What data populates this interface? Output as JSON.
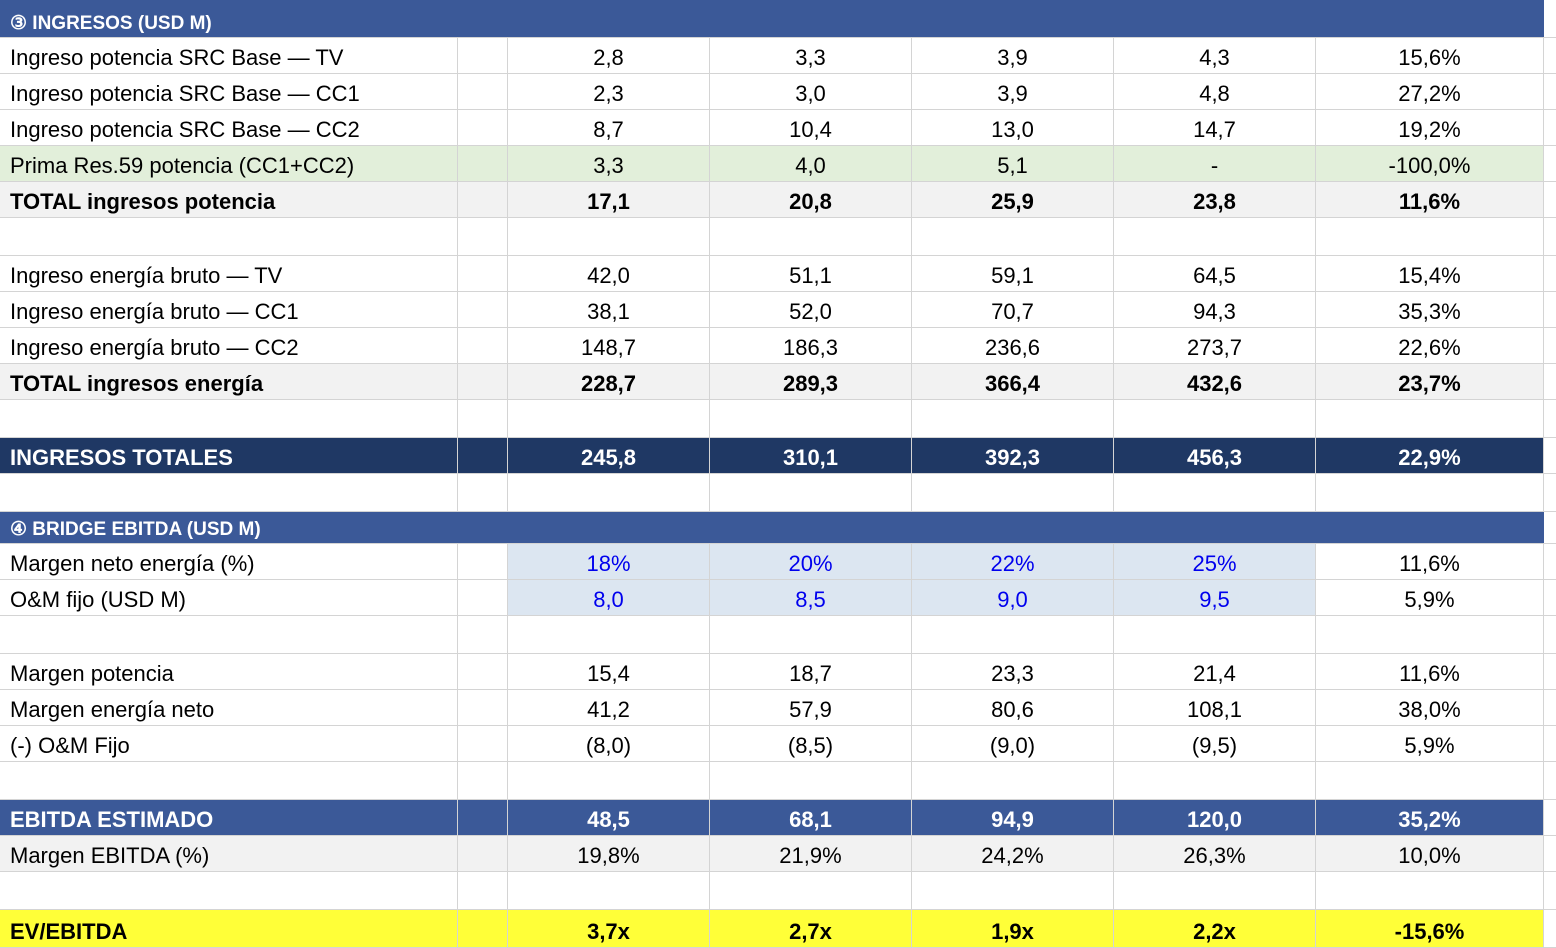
{
  "sections": {
    "ingresos": "③ INGRESOS (USD M)",
    "bridge": "④ BRIDGE EBITDA (USD M)"
  },
  "rows": {
    "pot_tv": {
      "label": "Ingreso potencia SRC Base — TV",
      "values": [
        "2,8",
        "3,3",
        "3,9",
        "4,3",
        "15,6%"
      ]
    },
    "pot_cc1": {
      "label": "Ingreso potencia SRC Base — CC1",
      "values": [
        "2,3",
        "3,0",
        "3,9",
        "4,8",
        "27,2%"
      ]
    },
    "pot_cc2": {
      "label": "Ingreso potencia SRC Base — CC2",
      "values": [
        "8,7",
        "10,4",
        "13,0",
        "14,7",
        "19,2%"
      ]
    },
    "prima": {
      "label": "Prima Res.59 potencia (CC1+CC2)",
      "values": [
        "3,3",
        "4,0",
        "5,1",
        "-",
        "-100,0%"
      ]
    },
    "total_pot": {
      "label": "TOTAL ingresos potencia",
      "values": [
        "17,1",
        "20,8",
        "25,9",
        "23,8",
        "11,6%"
      ]
    },
    "ene_tv": {
      "label": "Ingreso energía bruto — TV",
      "values": [
        "42,0",
        "51,1",
        "59,1",
        "64,5",
        "15,4%"
      ]
    },
    "ene_cc1": {
      "label": "Ingreso energía bruto — CC1",
      "values": [
        "38,1",
        "52,0",
        "70,7",
        "94,3",
        "35,3%"
      ]
    },
    "ene_cc2": {
      "label": "Ingreso energía bruto — CC2",
      "values": [
        "148,7",
        "186,3",
        "236,6",
        "273,7",
        "22,6%"
      ]
    },
    "total_ene": {
      "label": "TOTAL ingresos energía",
      "values": [
        "228,7",
        "289,3",
        "366,4",
        "432,6",
        "23,7%"
      ]
    },
    "ing_tot": {
      "label": "INGRESOS TOTALES",
      "values": [
        "245,8",
        "310,1",
        "392,3",
        "456,3",
        "22,9%"
      ]
    },
    "mg_neto_pct": {
      "label": "Margen neto energía (%)",
      "values": [
        "18%",
        "20%",
        "22%",
        "25%",
        "11,6%"
      ]
    },
    "om_fijo": {
      "label": "O&M fijo (USD M)",
      "values": [
        "8,0",
        "8,5",
        "9,0",
        "9,5",
        "5,9%"
      ]
    },
    "mg_pot": {
      "label": "Margen potencia",
      "values": [
        "15,4",
        "18,7",
        "23,3",
        "21,4",
        "11,6%"
      ]
    },
    "mg_ene": {
      "label": "Margen energía neto",
      "values": [
        "41,2",
        "57,9",
        "80,6",
        "108,1",
        "38,0%"
      ]
    },
    "om_neg": {
      "label": "(-) O&M Fijo",
      "values": [
        "(8,0)",
        "(8,5)",
        "(9,0)",
        "(9,5)",
        "5,9%"
      ]
    },
    "ebitda": {
      "label": "EBITDA ESTIMADO",
      "values": [
        "48,5",
        "68,1",
        "94,9",
        "120,0",
        "35,2%"
      ]
    },
    "mg_ebitda": {
      "label": "Margen EBITDA (%)",
      "values": [
        "19,8%",
        "21,9%",
        "24,2%",
        "26,3%",
        "10,0%"
      ]
    },
    "ev_ebitda": {
      "label": "EV/EBITDA",
      "values": [
        "3,7x",
        "2,7x",
        "1,9x",
        "2,2x",
        "-15,6%"
      ]
    }
  },
  "colors": {
    "section_header": "#3b5998",
    "total_dark": "#1f3864",
    "input_fill": "#dce6f1",
    "input_text": "#0000ee",
    "highlight": "#ffff38",
    "green_row": "#e2efda",
    "total_grey": "#f2f2f2"
  }
}
